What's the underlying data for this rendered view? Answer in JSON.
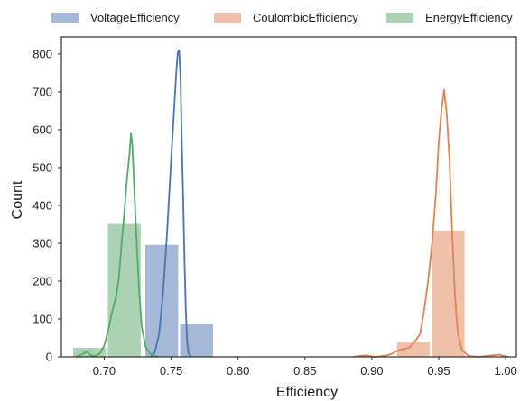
{
  "chart_data": {
    "type": "histogram",
    "title": "",
    "xlabel": "Efficiency",
    "ylabel": "Count",
    "xlim": [
      0.668,
      1.008
    ],
    "ylim": [
      0,
      845
    ],
    "x_ticks": [
      "0.70",
      "0.75",
      "0.80",
      "0.85",
      "0.90",
      "0.95",
      "1.00"
    ],
    "x_tick_values": [
      0.7,
      0.75,
      0.8,
      0.85,
      0.9,
      0.95,
      1.0
    ],
    "y_ticks": [
      0,
      100,
      200,
      300,
      400,
      500,
      600,
      700,
      800
    ],
    "grid": false,
    "legend_position": "top",
    "series": [
      {
        "name": "VoltageEfficiency",
        "color": "#4c72b0",
        "bars": [
          {
            "x0": 0.73,
            "x1": 0.756,
            "count": 297
          },
          {
            "x0": 0.756,
            "x1": 0.782,
            "count": 87
          }
        ],
        "kde": [
          [
            0.735,
            0
          ],
          [
            0.738,
            15
          ],
          [
            0.741,
            60
          ],
          [
            0.744,
            170
          ],
          [
            0.747,
            330
          ],
          [
            0.75,
            520
          ],
          [
            0.752,
            640
          ],
          [
            0.754,
            760
          ],
          [
            0.755,
            805
          ],
          [
            0.756,
            810
          ],
          [
            0.757,
            740
          ],
          [
            0.758,
            560
          ],
          [
            0.759,
            420
          ],
          [
            0.76,
            250
          ],
          [
            0.761,
            120
          ],
          [
            0.762,
            40
          ],
          [
            0.763,
            10
          ],
          [
            0.765,
            0
          ]
        ]
      },
      {
        "name": "CoulombicEfficiency",
        "color": "#dd8452",
        "bars": [
          {
            "x0": 0.944,
            "x1": 0.97,
            "count": 335
          },
          {
            "x0": 0.918,
            "x1": 0.944,
            "count": 40
          }
        ],
        "kde": [
          [
            0.886,
            0
          ],
          [
            0.89,
            2
          ],
          [
            0.896,
            4
          ],
          [
            0.902,
            0
          ],
          [
            0.91,
            3
          ],
          [
            0.915,
            8
          ],
          [
            0.919,
            16
          ],
          [
            0.923,
            20
          ],
          [
            0.928,
            24
          ],
          [
            0.932,
            40
          ],
          [
            0.936,
            60
          ],
          [
            0.939,
            120
          ],
          [
            0.942,
            200
          ],
          [
            0.945,
            300
          ],
          [
            0.948,
            440
          ],
          [
            0.95,
            570
          ],
          [
            0.952,
            650
          ],
          [
            0.954,
            705
          ],
          [
            0.956,
            640
          ],
          [
            0.958,
            520
          ],
          [
            0.96,
            330
          ],
          [
            0.962,
            170
          ],
          [
            0.964,
            70
          ],
          [
            0.967,
            20
          ],
          [
            0.972,
            3
          ],
          [
            0.98,
            0
          ],
          [
            0.985,
            2
          ],
          [
            0.99,
            4
          ],
          [
            0.995,
            6
          ],
          [
            0.998,
            3
          ],
          [
            1.002,
            0
          ]
        ]
      },
      {
        "name": "EnergyEfficiency",
        "color": "#55a868",
        "bars": [
          {
            "x0": 0.676,
            "x1": 0.702,
            "count": 25
          },
          {
            "x0": 0.702,
            "x1": 0.728,
            "count": 352
          }
        ],
        "kde": [
          [
            0.679,
            0
          ],
          [
            0.683,
            6
          ],
          [
            0.687,
            14
          ],
          [
            0.69,
            4
          ],
          [
            0.693,
            2
          ],
          [
            0.697,
            10
          ],
          [
            0.7,
            30
          ],
          [
            0.703,
            70
          ],
          [
            0.706,
            120
          ],
          [
            0.709,
            160
          ],
          [
            0.711,
            210
          ],
          [
            0.713,
            300
          ],
          [
            0.715,
            380
          ],
          [
            0.717,
            470
          ],
          [
            0.719,
            540
          ],
          [
            0.72,
            590
          ],
          [
            0.721,
            560
          ],
          [
            0.722,
            480
          ],
          [
            0.724,
            320
          ],
          [
            0.726,
            180
          ],
          [
            0.728,
            80
          ],
          [
            0.731,
            25
          ],
          [
            0.735,
            6
          ],
          [
            0.74,
            0
          ]
        ]
      }
    ]
  }
}
